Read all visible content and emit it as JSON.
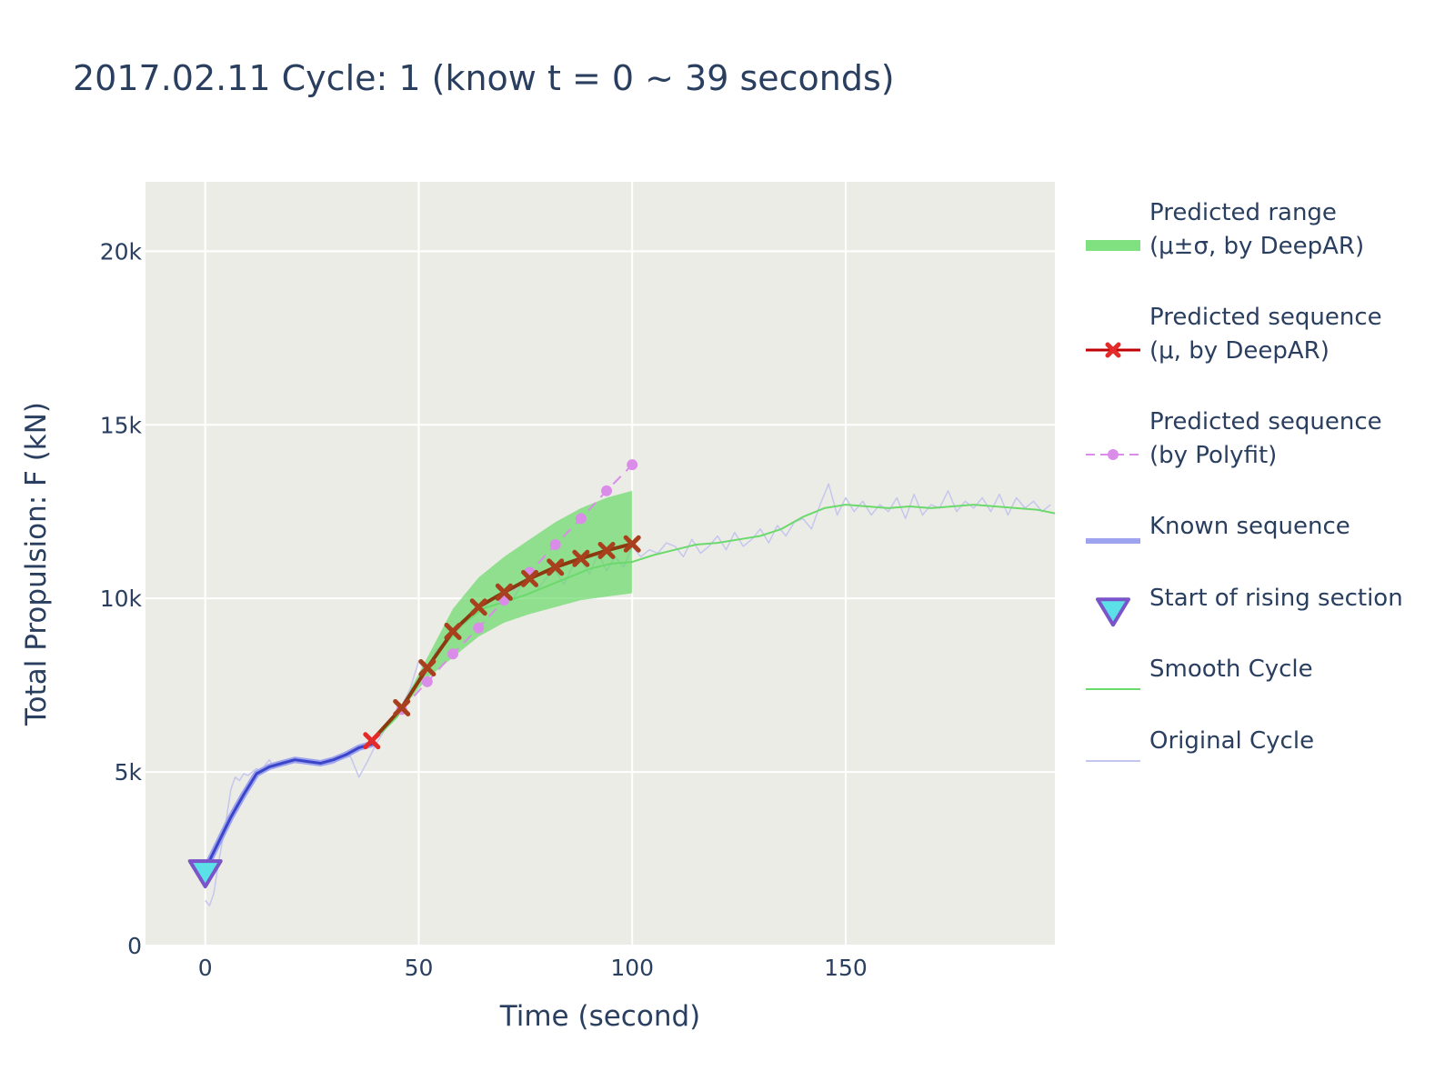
{
  "chart_data": {
    "type": "line",
    "title": "2017.02.11 Cycle: 1 (know t = 0 ~ 39 seconds)",
    "xlabel": "Time (second)",
    "ylabel": "Total Propulsion: F (kN)",
    "xlim": [
      -14,
      199
    ],
    "ylim": [
      0,
      22000
    ],
    "x_ticks": [
      0,
      50,
      100,
      150
    ],
    "x_tick_labels": [
      "0",
      "50",
      "100",
      "150"
    ],
    "y_ticks": [
      0,
      5000,
      10000,
      15000,
      20000
    ],
    "y_tick_labels": [
      "0",
      "5k",
      "10k",
      "15k",
      "20k"
    ],
    "grid": true,
    "legend_position": "right",
    "colors": {
      "range": "#5fd95f",
      "deepar": "#c00000",
      "deepar_marker": "#e52a2a",
      "polyfit": "#d98de9",
      "known": "#3b45c7",
      "start_marker": "#5be0e8",
      "start_marker_edge": "#7a54c9",
      "smooth": "#6bd96b",
      "original": "#c5c6ee",
      "plot_bg": "#ecece6"
    },
    "series": [
      {
        "name": "Predicted range\n(μ±σ, by DeepAR)",
        "legend_lines": [
          "Predicted range",
          "(μ±σ, by DeepAR)"
        ],
        "kind": "band",
        "x": [
          39,
          46,
          52,
          58,
          64,
          70,
          76,
          82,
          88,
          94,
          100
        ],
        "upper": [
          5900,
          6900,
          8300,
          9700,
          10600,
          11200,
          11700,
          12200,
          12600,
          12900,
          13100
        ],
        "lower": [
          5900,
          6800,
          7700,
          8300,
          8900,
          9300,
          9550,
          9750,
          9950,
          10050,
          10150
        ]
      },
      {
        "name": "Predicted sequence\n(μ, by DeepAR)",
        "legend_lines": [
          "Predicted sequence",
          "(μ, by DeepAR)"
        ],
        "kind": "line-x",
        "x": [
          39,
          46,
          52,
          58,
          64,
          70,
          76,
          82,
          88,
          94,
          100
        ],
        "y": [
          5900,
          6850,
          8000,
          9050,
          9750,
          10180,
          10570,
          10900,
          11150,
          11380,
          11570
        ]
      },
      {
        "name": "Predicted sequence\n(by Polyfit)",
        "legend_lines": [
          "Predicted sequence",
          "(by Polyfit)"
        ],
        "kind": "dash-dot",
        "x": [
          46,
          52,
          58,
          64,
          70,
          76,
          82,
          88,
          94,
          100
        ],
        "y": [
          6800,
          7600,
          8400,
          9150,
          9950,
          10750,
          11550,
          12300,
          13100,
          13850
        ]
      },
      {
        "name": "Known sequence",
        "legend_lines": [
          "Known sequence"
        ],
        "kind": "line",
        "x": [
          0,
          3,
          6,
          9,
          12,
          15,
          18,
          21,
          24,
          27,
          30,
          33,
          36,
          39
        ],
        "y": [
          2200,
          2950,
          3700,
          4350,
          4950,
          5150,
          5250,
          5350,
          5300,
          5250,
          5350,
          5500,
          5700,
          5800
        ]
      },
      {
        "name": "Start of rising section",
        "legend_lines": [
          "Start of rising section"
        ],
        "kind": "marker",
        "x": [
          0
        ],
        "y": [
          2100
        ]
      },
      {
        "name": "Smooth Cycle",
        "legend_lines": [
          "Smooth Cycle"
        ],
        "kind": "thin-line",
        "x": [
          39,
          45,
          50,
          55,
          60,
          65,
          70,
          75,
          80,
          85,
          90,
          95,
          100,
          105,
          110,
          115,
          120,
          125,
          130,
          135,
          140,
          145,
          150,
          155,
          160,
          165,
          170,
          175,
          180,
          185,
          190,
          195,
          199
        ],
        "y": [
          5850,
          6600,
          7600,
          8500,
          9250,
          9700,
          9900,
          10100,
          10350,
          10600,
          10850,
          11000,
          11050,
          11250,
          11400,
          11550,
          11600,
          11700,
          11800,
          12000,
          12350,
          12600,
          12700,
          12650,
          12600,
          12650,
          12600,
          12650,
          12700,
          12650,
          12600,
          12550,
          12450
        ]
      },
      {
        "name": "Original Cycle",
        "legend_lines": [
          "Original Cycle"
        ],
        "kind": "faint-line",
        "x": [
          0,
          1,
          2,
          3,
          4,
          5,
          6,
          7,
          8,
          9,
          10,
          11,
          12,
          13,
          14,
          15,
          16,
          17,
          18,
          19,
          20,
          22,
          24,
          26,
          28,
          30,
          32,
          34,
          36,
          38,
          40,
          42,
          44,
          46,
          48,
          50,
          52,
          54,
          56,
          58,
          60,
          62,
          64,
          66,
          68,
          70,
          72,
          74,
          76,
          78,
          80,
          82,
          84,
          86,
          88,
          90,
          92,
          94,
          96,
          98,
          100,
          102,
          104,
          106,
          108,
          110,
          112,
          114,
          116,
          118,
          120,
          122,
          124,
          126,
          128,
          130,
          132,
          134,
          136,
          138,
          140,
          142,
          144,
          146,
          148,
          150,
          152,
          154,
          156,
          158,
          160,
          162,
          164,
          166,
          168,
          170,
          172,
          174,
          176,
          178,
          180,
          182,
          184,
          186,
          188,
          190,
          192,
          194,
          196,
          198
        ],
        "y": [
          1300,
          1150,
          1500,
          2300,
          3000,
          3700,
          4500,
          4850,
          4750,
          4950,
          4900,
          5000,
          5100,
          5000,
          5200,
          5350,
          5150,
          5300,
          5250,
          5200,
          5300,
          5250,
          5350,
          5300,
          5200,
          5250,
          5400,
          5450,
          4850,
          5300,
          5800,
          6200,
          6600,
          6900,
          7400,
          8200,
          7800,
          8500,
          8700,
          8900,
          9200,
          9400,
          9600,
          9800,
          10100,
          10000,
          9950,
          10400,
          10700,
          10300,
          10600,
          10800,
          10400,
          10900,
          11100,
          10700,
          11300,
          10800,
          11200,
          10900,
          11500,
          11200,
          11400,
          11300,
          11600,
          11500,
          11200,
          11700,
          11300,
          11500,
          11800,
          11400,
          11900,
          11500,
          11700,
          12000,
          11600,
          12100,
          11800,
          12200,
          12300,
          12000,
          12700,
          13300,
          12400,
          12900,
          12500,
          12800,
          12400,
          12700,
          12500,
          12900,
          12300,
          13000,
          12400,
          12700,
          12600,
          13100,
          12500,
          12800,
          12600,
          12900,
          12500,
          13000,
          12400,
          12900,
          12600,
          12800,
          12500,
          12700
        ]
      }
    ]
  }
}
